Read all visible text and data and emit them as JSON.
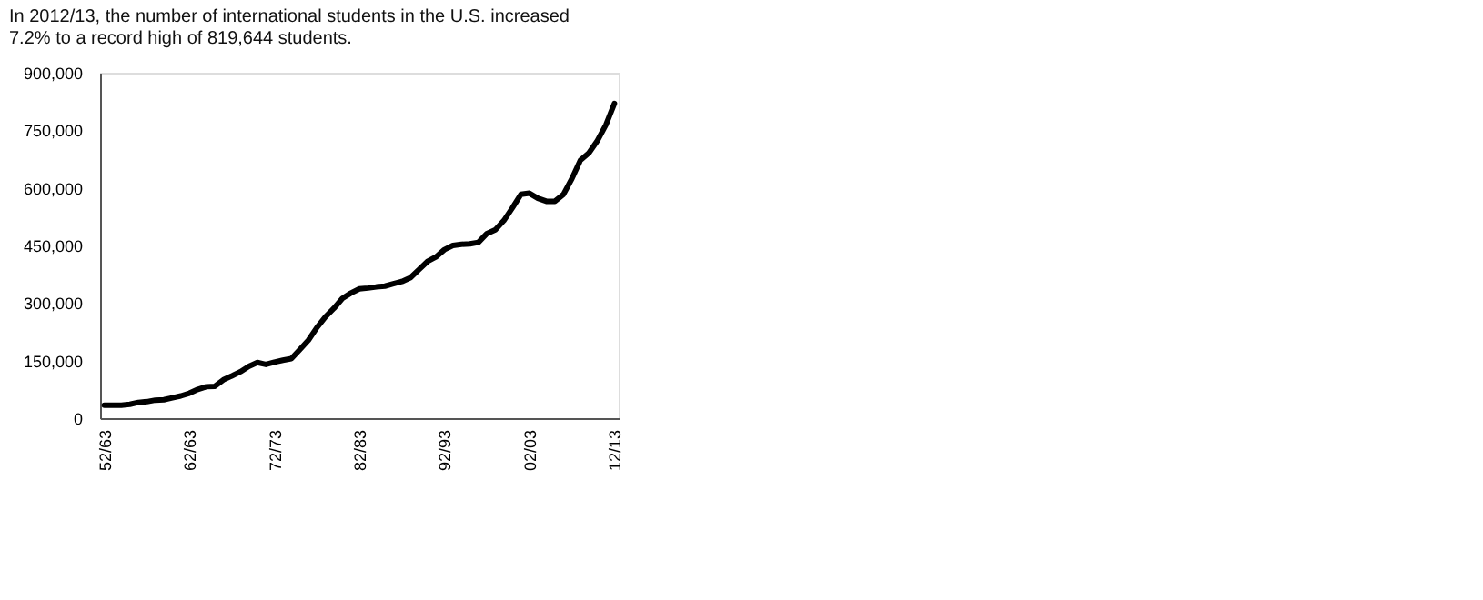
{
  "chart_data": {
    "type": "line",
    "title": "In 2012/13, the number of international students in the U.S. increased 7.2% to a record high of 819,644 students.",
    "categories": [
      "52/63",
      null,
      null,
      null,
      null,
      null,
      null,
      null,
      null,
      null,
      "62/63",
      null,
      null,
      null,
      null,
      null,
      null,
      null,
      null,
      null,
      "72/73",
      null,
      null,
      null,
      null,
      null,
      null,
      null,
      null,
      null,
      "82/83",
      null,
      null,
      null,
      null,
      null,
      null,
      null,
      null,
      null,
      "92/93",
      null,
      null,
      null,
      null,
      null,
      null,
      null,
      null,
      null,
      "02/03",
      null,
      null,
      null,
      null,
      null,
      null,
      null,
      null,
      null,
      "12/13"
    ],
    "series": [
      {
        "color": "#000000",
        "values": [
          34000,
          34000,
          34000,
          36000,
          41000,
          43000,
          47000,
          48000,
          53000,
          58000,
          65000,
          75000,
          82000,
          83000,
          100000,
          110000,
          121000,
          135000,
          145000,
          140000,
          146000,
          151000,
          155000,
          179000,
          203000,
          236000,
          264000,
          286000,
          312000,
          326000,
          337000,
          339000,
          342000,
          344000,
          350000,
          356000,
          366000,
          387000,
          408000,
          420000,
          439000,
          450000,
          453000,
          454000,
          458000,
          481000,
          491000,
          515000,
          548000,
          583000,
          586000,
          573000,
          565000,
          565000,
          583000,
          624000,
          672000,
          691000,
          723000,
          764000,
          820000
        ]
      }
    ],
    "ylim": [
      0,
      900000
    ],
    "yticks": [
      0,
      {
        "value": 150000,
        "label": "150,000"
      },
      {
        "value": 300000,
        "label": "300,000"
      },
      {
        "value": 450000,
        "label": "450,000"
      },
      {
        "value": 600000,
        "label": "600,000"
      },
      {
        "value": 750000,
        "label": "750,000"
      },
      {
        "value": 900000,
        "label": "900,000"
      }
    ],
    "grid": false,
    "marker": "none",
    "line_style": "solid"
  }
}
